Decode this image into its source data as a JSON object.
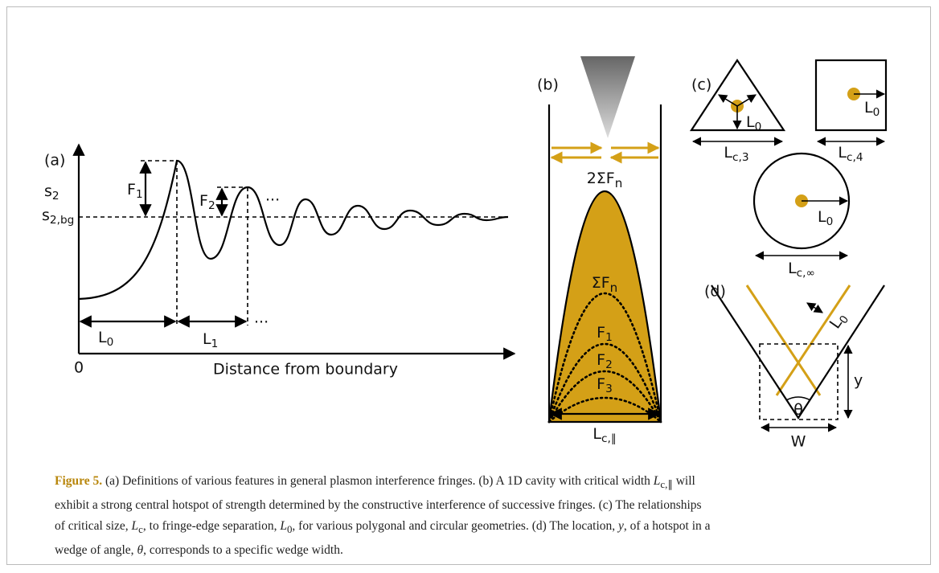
{
  "panel_a": {
    "label": "(a)",
    "y_axis": {
      "main": "s",
      "sub": "2"
    },
    "baseline": {
      "main": "s",
      "sub": "2,bg"
    },
    "f1": {
      "main": "F",
      "sub": "1"
    },
    "f2": {
      "main": "F",
      "sub": "2"
    },
    "ellipsis_f": "...",
    "l0": {
      "main": "L",
      "sub": "0"
    },
    "l1": {
      "main": "L",
      "sub": "1"
    },
    "ellipsis_l": "...",
    "origin": "0",
    "x_axis": "Distance from boundary"
  },
  "panel_b": {
    "label": "(b)",
    "total": {
      "main": "2ΣF",
      "sub": "n"
    },
    "sum": {
      "main": "ΣF",
      "sub": "n"
    },
    "f1": {
      "main": "F",
      "sub": "1"
    },
    "f2": {
      "main": "F",
      "sub": "2"
    },
    "f3": {
      "main": "F",
      "sub": "3"
    },
    "width": {
      "main": "L",
      "sub": "c,∥"
    }
  },
  "panel_c": {
    "label": "(c)",
    "triangle": {
      "l0": {
        "main": "L",
        "sub": "0"
      },
      "lc": {
        "main": "L",
        "sub": "c,3"
      }
    },
    "square": {
      "l0": {
        "main": "L",
        "sub": "0"
      },
      "lc": {
        "main": "L",
        "sub": "c,4"
      }
    },
    "circle": {
      "l0": {
        "main": "L",
        "sub": "0"
      },
      "lc": {
        "main": "L",
        "sub": "c,∞"
      }
    }
  },
  "panel_d": {
    "label": "(d)",
    "l0": {
      "main": "L",
      "sub": "0"
    },
    "theta": "θ",
    "y": "y",
    "w": "W"
  },
  "caption": {
    "lines": [
      [
        {
          "text": "Figure 5.",
          "style": "bold"
        },
        {
          "text": "  (a) Definitions of various features in general plasmon interference fringes. (b) A 1D cavity with critical width ",
          "style": "normal"
        },
        {
          "text": "L",
          "style": "italic"
        },
        {
          "text": "c,∥",
          "style": "sub"
        },
        {
          "text": " will",
          "style": "normal"
        }
      ],
      [
        {
          "text": "exhibit a strong central hotspot of strength determined by the constructive interference of successive fringes. (c) The relationships",
          "style": "normal"
        }
      ],
      [
        {
          "text": "of critical size, ",
          "style": "normal"
        },
        {
          "text": "L",
          "style": "italic"
        },
        {
          "text": "c",
          "style": "sub"
        },
        {
          "text": ", to fringe-edge separation, ",
          "style": "normal"
        },
        {
          "text": "L",
          "style": "italic"
        },
        {
          "text": "0",
          "style": "sub"
        },
        {
          "text": ", for various polygonal and circular geometries. (d) The location, ",
          "style": "normal"
        },
        {
          "text": "y",
          "style": "italic"
        },
        {
          "text": ", of a hotspot in a",
          "style": "normal"
        }
      ],
      [
        {
          "text": "wedge of angle, ",
          "style": "normal"
        },
        {
          "text": "θ",
          "style": "italic"
        },
        {
          "text": ", corresponds to a specific wedge width.",
          "style": "normal"
        }
      ]
    ]
  }
}
